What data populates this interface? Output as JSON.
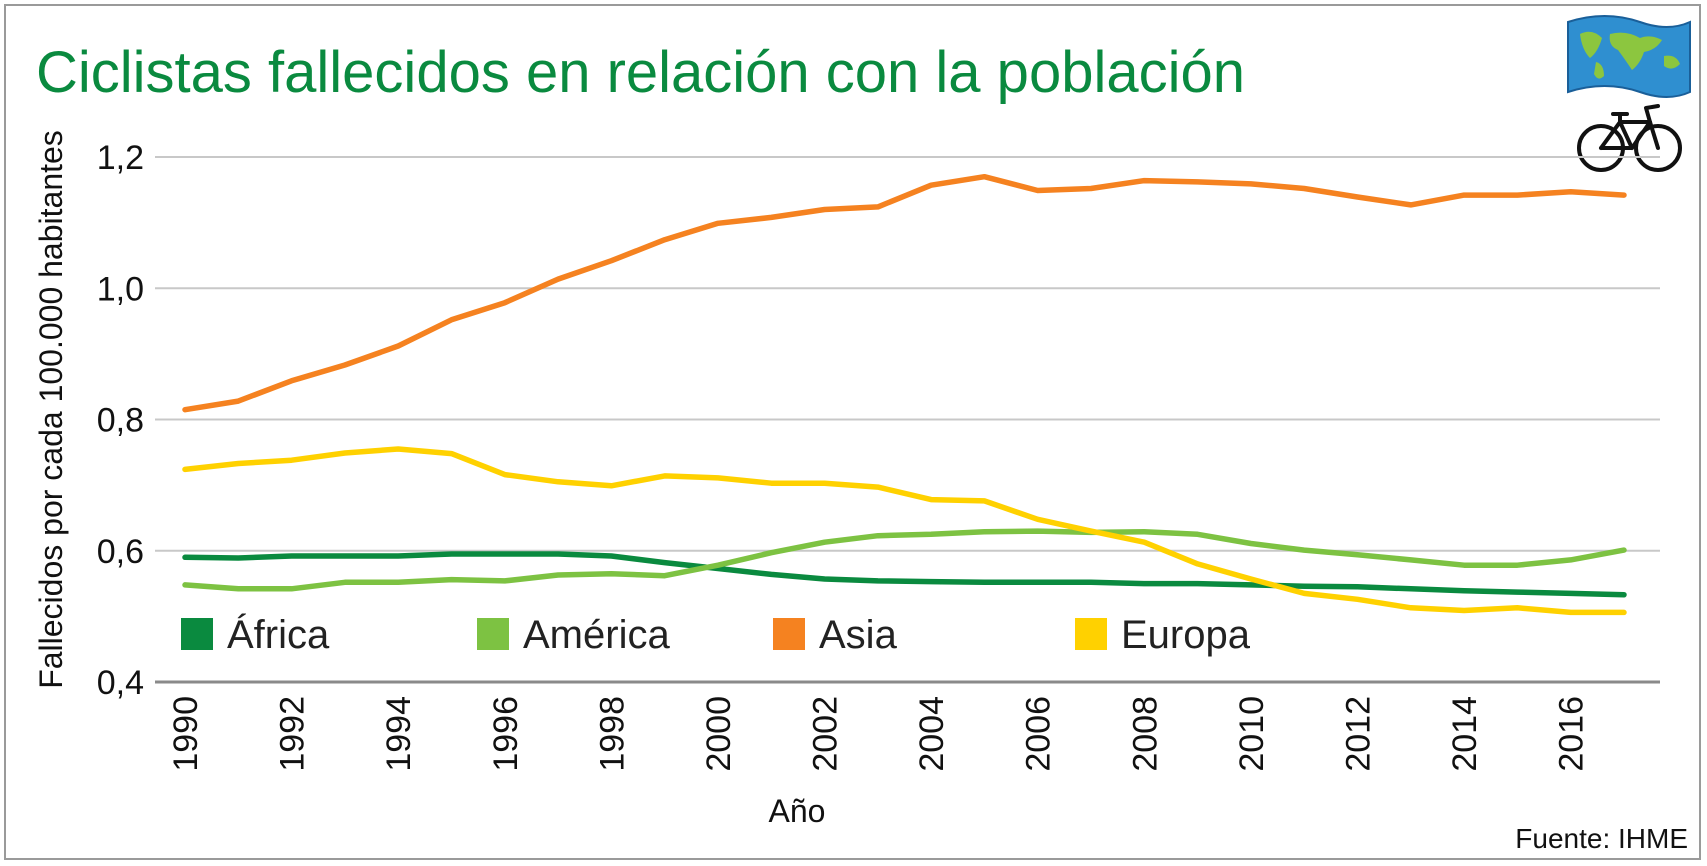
{
  "title": "Ciclistas fallecidos en relación con la población",
  "source": "Fuente: IHME",
  "icons": [
    "world-flag-icon",
    "bicycle-icon"
  ],
  "chart_data": {
    "type": "line",
    "title": "Ciclistas fallecidos en relación con la población",
    "xlabel": "Año",
    "ylabel": "Fallecidos por cada 100.000 habitantes",
    "xlim": [
      1990,
      2017
    ],
    "ylim": [
      0.4,
      1.2
    ],
    "y_ticks": [
      0.4,
      0.6,
      0.8,
      1.0,
      1.2
    ],
    "y_tick_labels": [
      "0,4",
      "0,6",
      "0,8",
      "1,0",
      "1,2"
    ],
    "x_ticks": [
      1990,
      1992,
      1994,
      1996,
      1998,
      2000,
      2002,
      2004,
      2006,
      2008,
      2010,
      2012,
      2014,
      2016
    ],
    "x_tick_labels": [
      "1990",
      "1992",
      "1994",
      "1996",
      "1998",
      "2000",
      "2002",
      "2004",
      "2006",
      "2008",
      "2010",
      "2012",
      "2014",
      "2016"
    ],
    "grid": true,
    "legend_position": "bottom-left, inside plot",
    "x": [
      1990,
      1991,
      1992,
      1993,
      1994,
      1995,
      1996,
      1997,
      1998,
      1999,
      2000,
      2001,
      2002,
      2003,
      2004,
      2005,
      2006,
      2007,
      2008,
      2009,
      2010,
      2011,
      2012,
      2013,
      2014,
      2015,
      2016,
      2017
    ],
    "series": [
      {
        "name": "África",
        "color": "#0a8a3f",
        "values": [
          0.59,
          0.589,
          0.592,
          0.592,
          0.592,
          0.595,
          0.595,
          0.595,
          0.592,
          0.582,
          0.573,
          0.564,
          0.557,
          0.554,
          0.553,
          0.552,
          0.552,
          0.552,
          0.55,
          0.55,
          0.548,
          0.546,
          0.545,
          0.542,
          0.539,
          0.537,
          0.535,
          0.533
        ]
      },
      {
        "name": "América",
        "color": "#7dc242",
        "values": [
          0.548,
          0.542,
          0.542,
          0.552,
          0.552,
          0.556,
          0.554,
          0.563,
          0.565,
          0.562,
          0.578,
          0.597,
          0.613,
          0.623,
          0.625,
          0.629,
          0.63,
          0.628,
          0.629,
          0.625,
          0.611,
          0.601,
          0.594,
          0.586,
          0.578,
          0.578,
          0.586,
          0.601
        ]
      },
      {
        "name": "Asia",
        "color": "#f58220",
        "values": [
          0.815,
          0.828,
          0.859,
          0.883,
          0.912,
          0.952,
          0.978,
          1.014,
          1.042,
          1.074,
          1.099,
          1.108,
          1.12,
          1.124,
          1.157,
          1.17,
          1.149,
          1.152,
          1.164,
          1.162,
          1.159,
          1.152,
          1.139,
          1.127,
          1.142,
          1.142,
          1.147,
          1.142
        ]
      },
      {
        "name": "Europa",
        "color": "#ffd100",
        "values": [
          0.724,
          0.733,
          0.738,
          0.749,
          0.755,
          0.748,
          0.716,
          0.705,
          0.699,
          0.714,
          0.711,
          0.703,
          0.703,
          0.697,
          0.678,
          0.676,
          0.648,
          0.63,
          0.613,
          0.58,
          0.557,
          0.535,
          0.526,
          0.513,
          0.509,
          0.513,
          0.506,
          0.506
        ]
      }
    ]
  }
}
